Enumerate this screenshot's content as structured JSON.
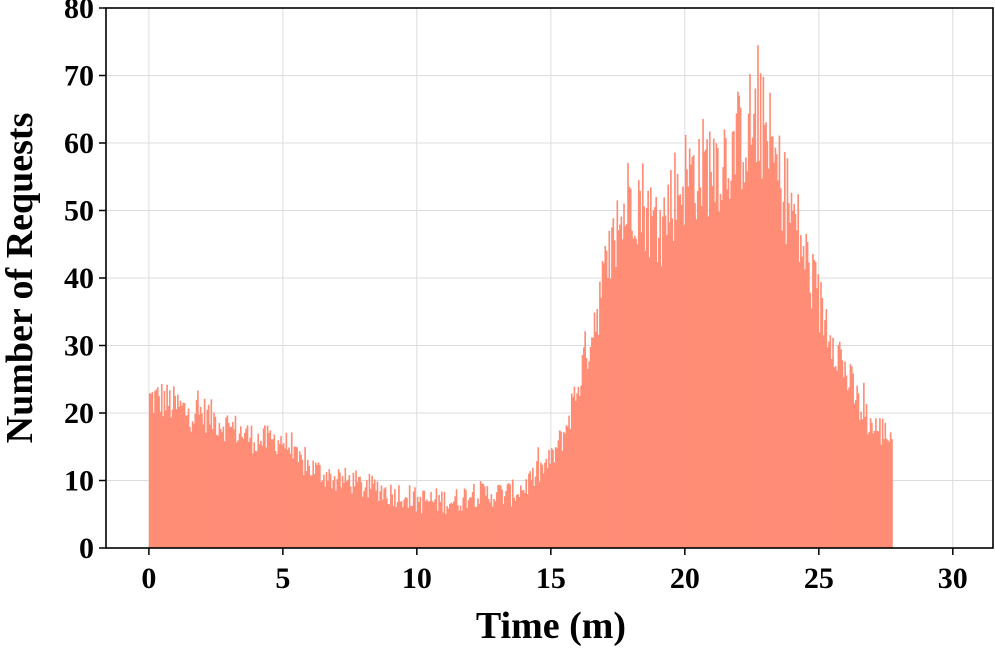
{
  "chart_data": {
    "type": "bar",
    "title": "",
    "xlabel": "Time (m)",
    "ylabel": "Number of Requests",
    "xlim": [
      -1.6,
      31.5
    ],
    "ylim": [
      0,
      80
    ],
    "xticks": [
      0,
      5,
      10,
      15,
      20,
      25,
      30
    ],
    "yticks": [
      0,
      10,
      20,
      30,
      40,
      50,
      60,
      70,
      80
    ],
    "grid": true,
    "bar_color": "#ff8c75",
    "bin_width_minutes": 0.05,
    "series": [
      {
        "x_start": 0,
        "x_step": 0.5,
        "values": [
          22,
          22,
          21,
          20,
          20,
          19,
          18,
          17,
          16,
          16,
          16,
          13,
          12,
          11,
          10,
          10,
          9,
          9,
          8,
          8,
          7,
          7,
          7,
          7,
          8,
          8,
          8,
          8,
          9,
          11,
          13,
          17,
          24,
          32,
          40,
          47,
          53,
          51,
          46,
          52,
          55,
          56,
          57,
          58,
          60,
          63,
          62,
          55,
          50,
          43,
          36,
          32,
          26,
          21,
          18,
          17
        ]
      }
    ]
  }
}
